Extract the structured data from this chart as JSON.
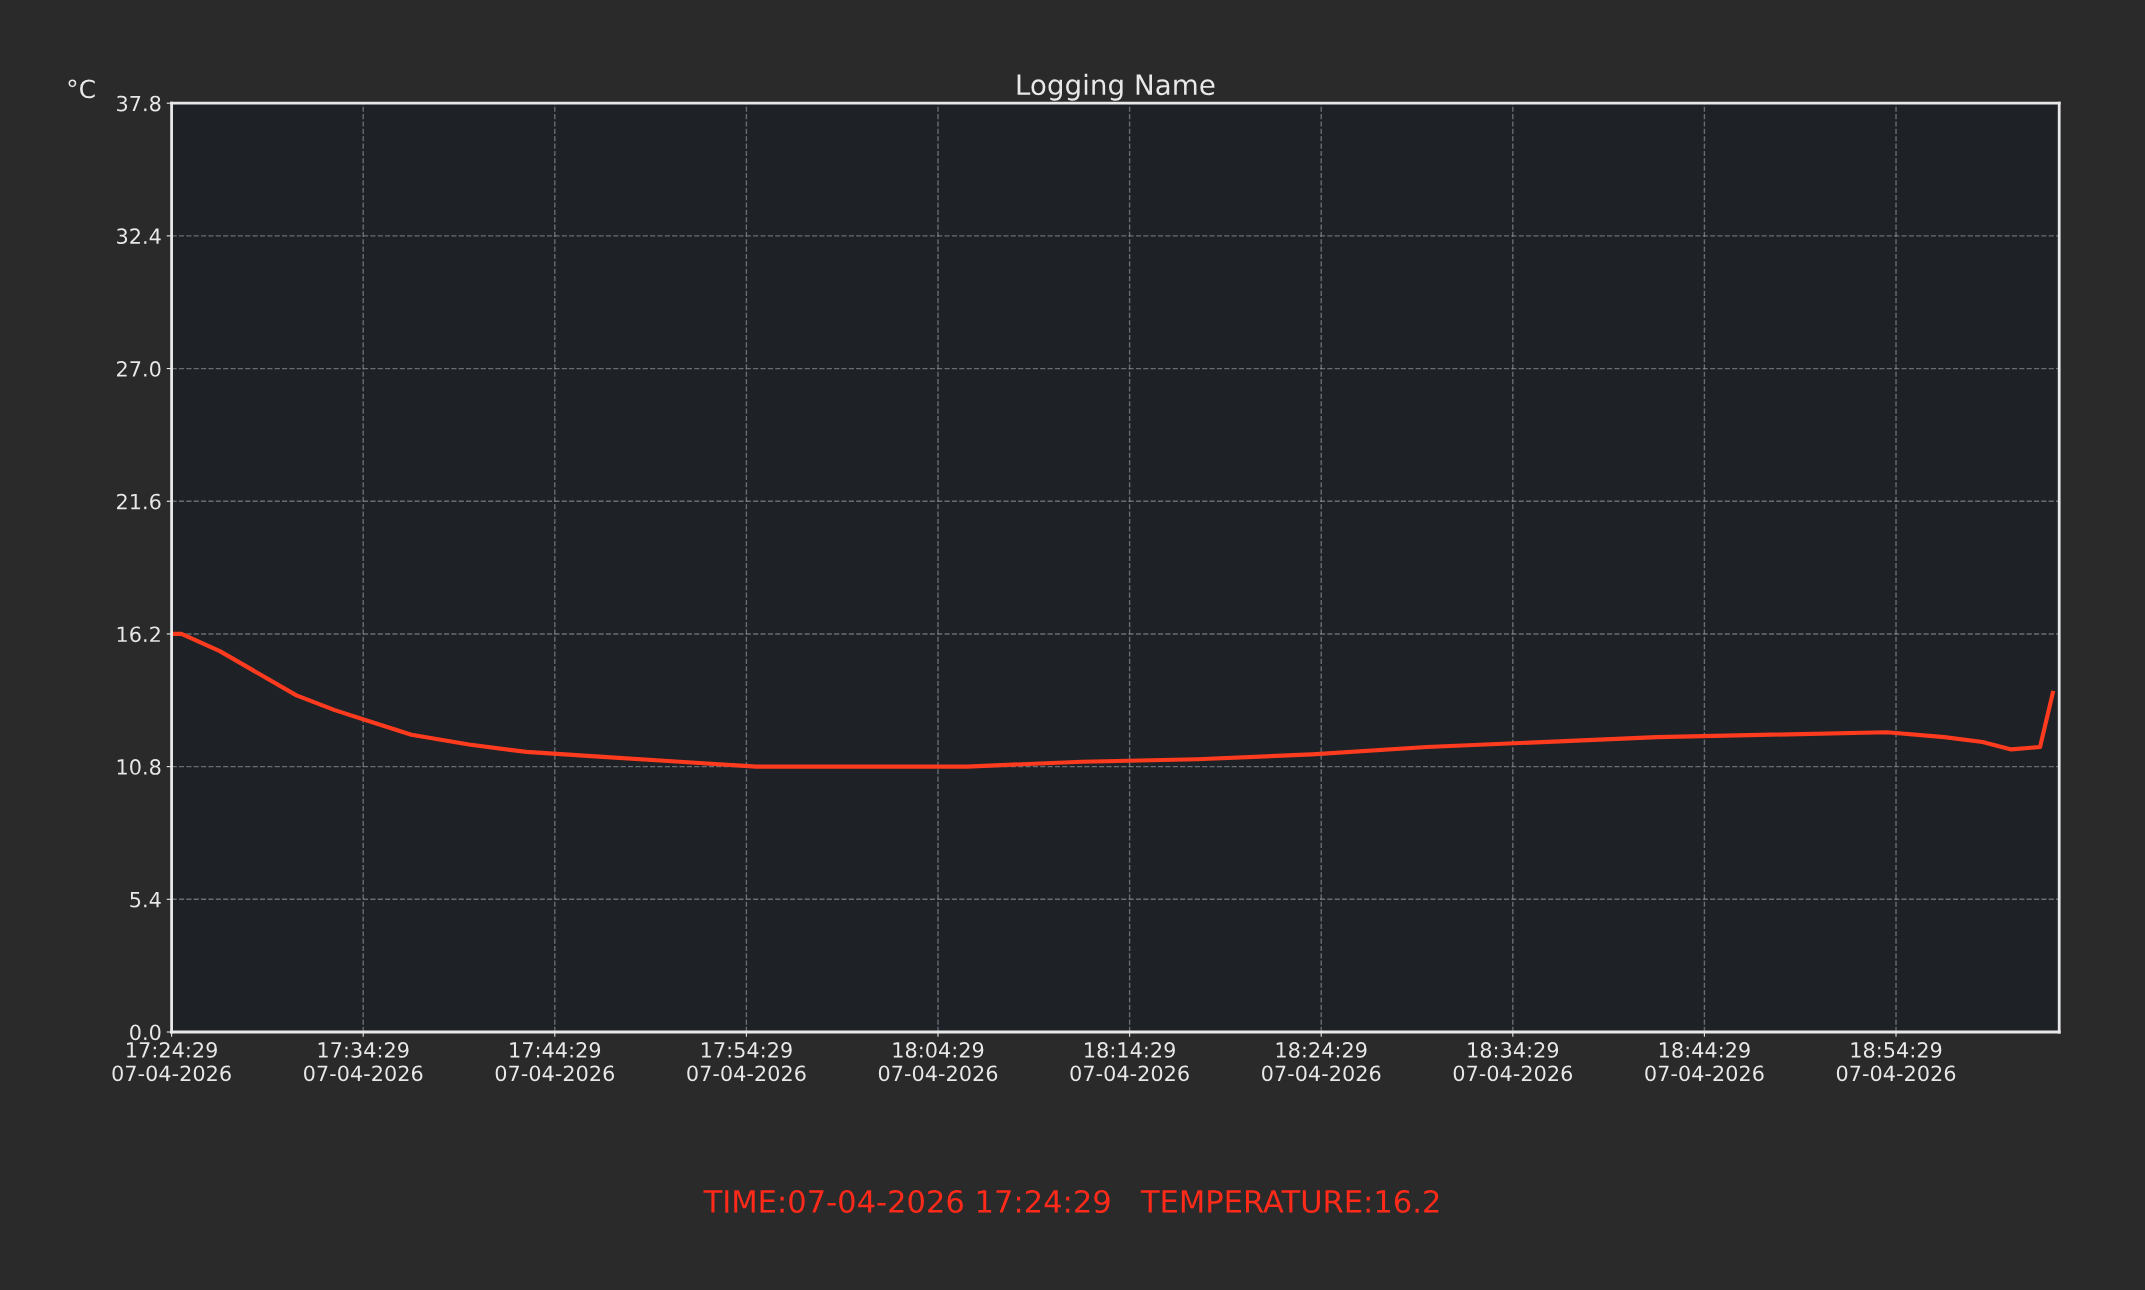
{
  "chart_data": {
    "type": "line",
    "title": "Logging Name",
    "ylabel": "°C",
    "x": [
      "2026-04-07T17:24:29",
      "2026-04-07T17:25",
      "2026-04-07T17:27",
      "2026-04-07T17:29",
      "2026-04-07T17:31",
      "2026-04-07T17:33",
      "2026-04-07T17:35",
      "2026-04-07T17:37",
      "2026-04-07T17:40",
      "2026-04-07T17:43",
      "2026-04-07T17:47",
      "2026-04-07T17:51",
      "2026-04-07T17:55",
      "2026-04-07T18:00",
      "2026-04-07T18:06",
      "2026-04-07T18:12",
      "2026-04-07T18:18",
      "2026-04-07T18:24",
      "2026-04-07T18:30",
      "2026-04-07T18:36",
      "2026-04-07T18:42",
      "2026-04-07T18:48",
      "2026-04-07T18:54",
      "2026-04-07T18:57",
      "2026-04-07T18:59",
      "2026-04-07T19:00:30",
      "2026-04-07T19:02",
      "2026-04-07T19:02:40"
    ],
    "series": [
      {
        "color": "#ff3b1f",
        "values": [
          16.2,
          16.2,
          15.5,
          14.6,
          13.7,
          13.1,
          12.6,
          12.1,
          11.7,
          11.4,
          11.2,
          11.0,
          10.8,
          10.8,
          10.8,
          11.0,
          11.1,
          11.3,
          11.6,
          11.8,
          12.0,
          12.1,
          12.2,
          12.0,
          11.8,
          11.5,
          11.6,
          13.8
        ]
      }
    ],
    "xlim": [
      "2026-04-07T17:24:29",
      "2026-04-07T19:03"
    ],
    "ylim": [
      0,
      37.8
    ],
    "xticks": [
      {
        "value": "2026-04-07T17:24:29",
        "label": "17:24:29\n07-04-2026"
      },
      {
        "value": "2026-04-07T17:34:29",
        "label": "17:34:29\n07-04-2026"
      },
      {
        "value": "2026-04-07T17:44:29",
        "label": "17:44:29\n07-04-2026"
      },
      {
        "value": "2026-04-07T17:54:29",
        "label": "17:54:29\n07-04-2026"
      },
      {
        "value": "2026-04-07T18:04:29",
        "label": "18:04:29\n07-04-2026"
      },
      {
        "value": "2026-04-07T18:14:29",
        "label": "18:14:29\n07-04-2026"
      },
      {
        "value": "2026-04-07T18:24:29",
        "label": "18:24:29\n07-04-2026"
      },
      {
        "value": "2026-04-07T18:34:29",
        "label": "18:34:29\n07-04-2026"
      },
      {
        "value": "2026-04-07T18:44:29",
        "label": "18:44:29\n07-04-2026"
      },
      {
        "value": "2026-04-07T18:54:29",
        "label": "18:54:29\n07-04-2026"
      }
    ],
    "yticks": [
      {
        "value": 0,
        "label": "0.0"
      },
      5.4,
      10.8,
      16.2,
      21.6,
      {
        "value": 27.0,
        "label": "27.0"
      },
      32.4,
      37.8
    ],
    "grid": true,
    "marker": "none",
    "line_style": "solid",
    "annotations": [
      "TIME:07-04-2026 17:24:29   TEMPERATURE:16.2"
    ]
  }
}
